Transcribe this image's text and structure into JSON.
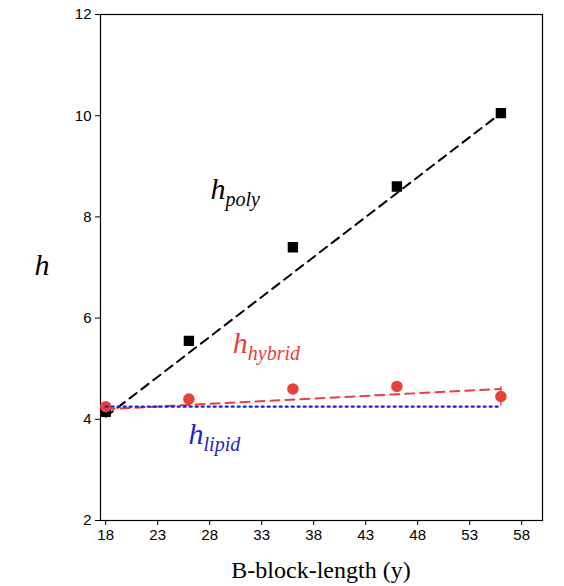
{
  "chart_data": {
    "type": "scatter",
    "x_label": "B-block-length (y)",
    "y_label": "h",
    "xlim": [
      17.5,
      60
    ],
    "xticks": [
      18,
      23,
      28,
      33,
      38,
      43,
      48,
      53,
      58
    ],
    "ylim": [
      2,
      12
    ],
    "yticks": [
      2,
      4,
      6,
      8,
      10,
      12
    ],
    "series": [
      {
        "label": "h",
        "label_sub": "poly",
        "color": "#000000",
        "marker": "square",
        "line_style": "dashed",
        "x": [
          18,
          26,
          36,
          46,
          56
        ],
        "values": [
          4.15,
          5.55,
          7.4,
          8.6,
          10.05
        ],
        "fit": {
          "x": [
            18,
            56
          ],
          "values": [
            4.05,
            10.05
          ]
        }
      },
      {
        "label": "h",
        "label_sub": "hybrid",
        "color": "#e8403c",
        "marker": "circle",
        "line_style": "dashed",
        "x": [
          18,
          26,
          36,
          46,
          56
        ],
        "values": [
          4.25,
          4.4,
          4.6,
          4.65,
          4.45
        ],
        "errors": [
          0.05,
          0.05,
          0.05,
          0.05,
          0.2
        ],
        "fit": {
          "x": [
            18,
            56
          ],
          "values": [
            4.2,
            4.6
          ]
        }
      },
      {
        "label": "h",
        "label_sub": "lipid",
        "color": "#1f1fd0",
        "type": "line",
        "line_style": "dotted",
        "x": [
          18,
          56
        ],
        "values": [
          4.25,
          4.25
        ]
      }
    ]
  }
}
